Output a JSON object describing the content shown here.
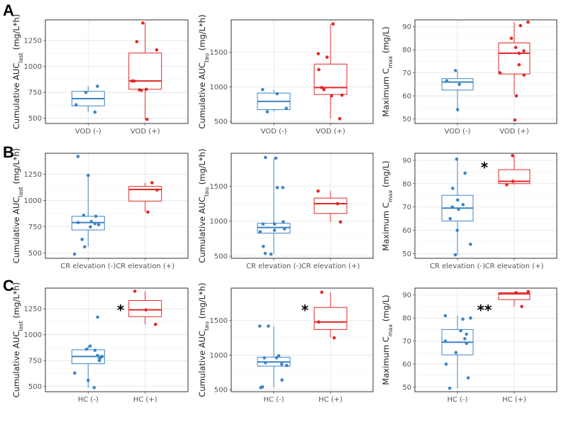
{
  "colors": {
    "neg": "#3d85c6",
    "pos": "#e32727",
    "grid": "#e3e3e3",
    "frame": "#333333"
  },
  "rows": [
    {
      "label": "A",
      "neg_group": "VOD (-)",
      "pos_group": "VOD (+)"
    },
    {
      "label": "B",
      "neg_group": "CR elevation (-)",
      "pos_group": "CR elevation (+)"
    },
    {
      "label": "C",
      "neg_group": "HC (-)",
      "pos_group": "HC (+)"
    }
  ],
  "columns": [
    {
      "ylabel": {
        "pre": "Cumulative AUC",
        "sub": "last",
        "post": " (mg/L*h)"
      },
      "yticks": [
        "500",
        "750",
        "1000",
        "1250"
      ],
      "ylim": [
        450,
        1450
      ]
    },
    {
      "ylabel": {
        "pre": "Cumulative AUC",
        "sub": "tau",
        "post": " (mg/L*h)"
      },
      "yticks": [
        "500",
        "1000",
        "1500"
      ],
      "ylim": [
        470,
        1970
      ]
    },
    {
      "ylabel": {
        "pre": "Maximum C",
        "sub": "max",
        "post": " (mg/L)"
      },
      "yticks": [
        "50",
        "60",
        "70",
        "80",
        "90"
      ],
      "ylim": [
        48,
        93
      ]
    }
  ],
  "chart_data": [
    {
      "type": "box",
      "row": 0,
      "col": 0,
      "categories": [
        "VOD (-)",
        "VOD (+)"
      ],
      "significance": "",
      "groups": [
        {
          "name": "VOD (-)",
          "q1": 620,
          "median": 690,
          "q3": 760,
          "whisker_low": 560,
          "whisker_high": 810,
          "points": [
            560,
            630,
            750,
            810
          ]
        },
        {
          "name": "VOD (+)",
          "q1": 780,
          "median": 860,
          "q3": 1130,
          "whisker_low": 490,
          "whisker_high": 1420,
          "points": [
            490,
            770,
            775,
            780,
            860,
            860,
            1160,
            1240,
            1420
          ]
        }
      ]
    },
    {
      "type": "box",
      "row": 0,
      "col": 1,
      "categories": [
        "VOD (-)",
        "VOD (+)"
      ],
      "significance": "",
      "groups": [
        {
          "name": "VOD (-)",
          "q1": 670,
          "median": 790,
          "q3": 910,
          "whisker_low": 640,
          "whisker_high": 960,
          "points": [
            640,
            690,
            900,
            960
          ]
        },
        {
          "name": "VOD (+)",
          "q1": 890,
          "median": 990,
          "q3": 1330,
          "whisker_low": 540,
          "whisker_high": 1910,
          "points": [
            540,
            870,
            880,
            960,
            990,
            1250,
            1430,
            1480,
            1910
          ]
        }
      ]
    },
    {
      "type": "box",
      "row": 0,
      "col": 2,
      "categories": [
        "VOD (-)",
        "VOD (+)"
      ],
      "significance": "",
      "groups": [
        {
          "name": "VOD (-)",
          "q1": 62.5,
          "median": 66,
          "q3": 67.5,
          "whisker_low": 54,
          "whisker_high": 71,
          "points": [
            54,
            65,
            66.5,
            71
          ]
        },
        {
          "name": "VOD (+)",
          "q1": 69.5,
          "median": 78.5,
          "q3": 83,
          "whisker_low": 60.5,
          "whisker_high": 92,
          "points": [
            49.5,
            60,
            69,
            70,
            73.5,
            78.5,
            79.5,
            81,
            85,
            90.5,
            92
          ]
        }
      ]
    },
    {
      "type": "box",
      "row": 1,
      "col": 0,
      "categories": [
        "CR elevation (-)",
        "CR elevation (+)"
      ],
      "significance": "",
      "groups": [
        {
          "name": "CR elevation (-)",
          "q1": 720,
          "median": 790,
          "q3": 850,
          "whisker_low": 560,
          "whisker_high": 1240,
          "points": [
            490,
            560,
            630,
            750,
            770,
            780,
            790,
            800,
            850,
            860,
            1240,
            1420
          ]
        },
        {
          "name": "CR elevation (+)",
          "q1": 995,
          "median": 1105,
          "q3": 1135,
          "whisker_low": 890,
          "whisker_high": 1170,
          "points": [
            890,
            1100,
            1170
          ]
        }
      ]
    },
    {
      "type": "box",
      "row": 1,
      "col": 1,
      "categories": [
        "CR elevation (-)",
        "CR elevation (+)"
      ],
      "significance": "",
      "groups": [
        {
          "name": "CR elevation (-)",
          "q1": 830,
          "median": 910,
          "q3": 970,
          "whisker_low": 530,
          "whisker_high": 1900,
          "points": [
            530,
            540,
            640,
            850,
            870,
            890,
            960,
            960,
            990,
            1480,
            1480,
            1900,
            1910
          ]
        },
        {
          "name": "CR elevation (+)",
          "q1": 1110,
          "median": 1250,
          "q3": 1330,
          "whisker_low": 990,
          "whisker_high": 1430,
          "points": [
            990,
            1250,
            1430
          ]
        }
      ]
    },
    {
      "type": "box",
      "row": 1,
      "col": 2,
      "categories": [
        "CR elevation (-)",
        "CR elevation (+)"
      ],
      "significance": "*",
      "groups": [
        {
          "name": "CR elevation (-)",
          "q1": 64,
          "median": 69.5,
          "q3": 75,
          "whisker_low": 49.5,
          "whisker_high": 91,
          "points": [
            49.5,
            54,
            60,
            65,
            69,
            70,
            71,
            73,
            78,
            84.5,
            90.5
          ]
        },
        {
          "name": "CR elevation (+)",
          "q1": 80,
          "median": 81,
          "q3": 86,
          "whisker_low": 79.5,
          "whisker_high": 92,
          "points": [
            79.5,
            81,
            92
          ]
        }
      ]
    },
    {
      "type": "box",
      "row": 2,
      "col": 0,
      "categories": [
        "HC (-)",
        "HC (+)"
      ],
      "significance": "*",
      "groups": [
        {
          "name": "HC (-)",
          "q1": 720,
          "median": 790,
          "q3": 855,
          "whisker_low": 490,
          "whisker_high": 890,
          "points": [
            490,
            560,
            630,
            750,
            770,
            780,
            790,
            800,
            850,
            860,
            890,
            1170
          ]
        },
        {
          "name": "HC (+)",
          "q1": 1175,
          "median": 1240,
          "q3": 1330,
          "whisker_low": 1100,
          "whisker_high": 1420,
          "points": [
            1100,
            1240,
            1420
          ]
        }
      ]
    },
    {
      "type": "box",
      "row": 2,
      "col": 1,
      "categories": [
        "HC (-)",
        "HC (+)"
      ],
      "significance": "*",
      "groups": [
        {
          "name": "HC (-)",
          "q1": 840,
          "median": 900,
          "q3": 970,
          "whisker_low": 530,
          "whisker_high": 1420,
          "points": [
            530,
            540,
            640,
            850,
            870,
            890,
            960,
            960,
            990,
            1420,
            1420
          ]
        },
        {
          "name": "HC (+)",
          "q1": 1370,
          "median": 1480,
          "q3": 1690,
          "whisker_low": 1250,
          "whisker_high": 1910,
          "points": [
            1250,
            1480,
            1910
          ]
        }
      ]
    },
    {
      "type": "box",
      "row": 2,
      "col": 2,
      "categories": [
        "HC (-)",
        "HC (+)"
      ],
      "significance": "**",
      "groups": [
        {
          "name": "HC (-)",
          "q1": 64,
          "median": 69.5,
          "q3": 75,
          "whisker_low": 49.5,
          "whisker_high": 81,
          "points": [
            49.5,
            54,
            60,
            65,
            69,
            70,
            71,
            73,
            74.5,
            79.5,
            80,
            81
          ]
        },
        {
          "name": "HC (+)",
          "q1": 88,
          "median": 90.5,
          "q3": 91,
          "whisker_low": 85,
          "whisker_high": 91.5,
          "points": [
            85,
            91,
            91.5
          ]
        }
      ]
    }
  ]
}
